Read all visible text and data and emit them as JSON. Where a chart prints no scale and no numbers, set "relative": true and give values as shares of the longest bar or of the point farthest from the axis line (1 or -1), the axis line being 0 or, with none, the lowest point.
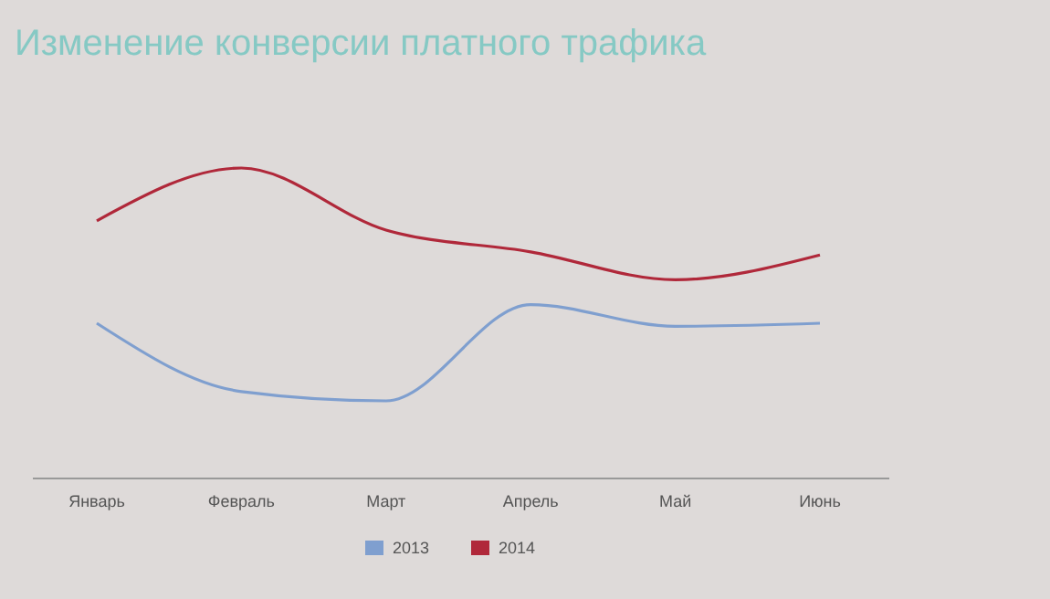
{
  "chart_data": {
    "type": "line",
    "title": "Изменение конверсии платного трафика",
    "relative": true,
    "categories": [
      "Январь",
      "Февраль",
      "Март",
      "Апрель",
      "Май",
      "Июнь"
    ],
    "series": [
      {
        "name": "2013",
        "color": "#7f9fcf",
        "values": [
          0.5,
          0.28,
          0.25,
          0.56,
          0.49,
          0.5
        ]
      },
      {
        "name": "2014",
        "color": "#b0283a",
        "values": [
          0.83,
          1,
          0.8,
          0.73,
          0.64,
          0.72
        ]
      }
    ],
    "legend": "bottom",
    "grid": false,
    "marker": "none",
    "line_style": "solid"
  }
}
